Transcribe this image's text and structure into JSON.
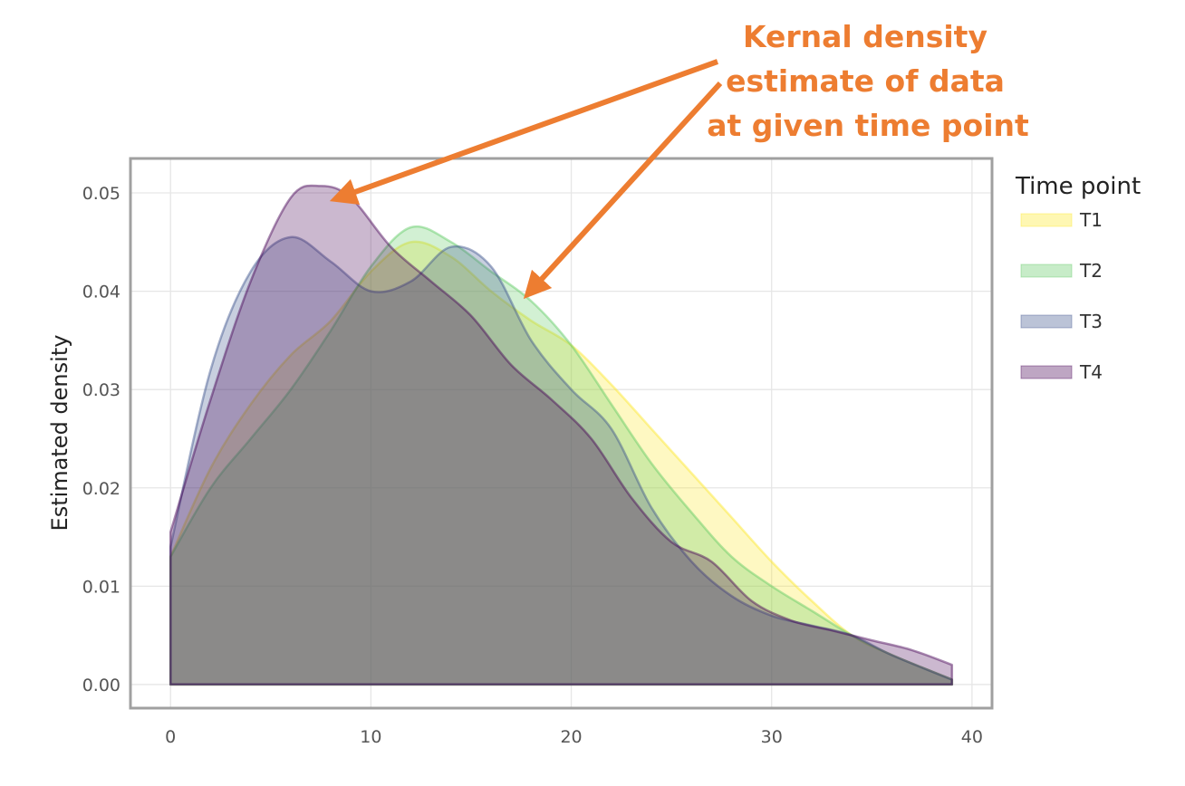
{
  "chart_data": {
    "type": "area",
    "title": "",
    "xlabel": "",
    "ylabel": "Estimated density",
    "xlim": [
      -2,
      41
    ],
    "ylim": [
      -0.0024,
      0.0535
    ],
    "xticks": [
      "0",
      "10",
      "20",
      "30",
      "40"
    ],
    "yticks": [
      "0.00",
      "0.01",
      "0.02",
      "0.03",
      "0.04",
      "0.05"
    ],
    "grid": true,
    "legend": {
      "title": "Time point",
      "position": "right"
    },
    "annotation": {
      "lines": [
        "Kernal density",
        "estimate of data",
        "at given time point"
      ],
      "color": "#ED7D31"
    },
    "series": [
      {
        "name": "T1",
        "color": "#FDE725",
        "x": [
          0,
          2,
          4,
          6,
          8,
          10,
          12,
          14,
          16,
          18,
          20,
          22,
          24,
          26,
          28,
          30,
          32,
          34,
          36,
          39
        ],
        "y": [
          0.013,
          0.022,
          0.0285,
          0.0335,
          0.037,
          0.042,
          0.045,
          0.0435,
          0.04,
          0.037,
          0.0345,
          0.0305,
          0.026,
          0.0215,
          0.017,
          0.0125,
          0.0085,
          0.005,
          0.003,
          0.0005
        ]
      },
      {
        "name": "T2",
        "color": "#5EC962",
        "x": [
          0,
          2,
          4,
          6,
          8,
          10,
          12,
          14,
          16,
          18,
          20,
          22,
          24,
          26,
          28,
          30,
          32,
          34,
          36,
          39
        ],
        "y": [
          0.013,
          0.02,
          0.025,
          0.03,
          0.036,
          0.0425,
          0.0465,
          0.045,
          0.042,
          0.039,
          0.0345,
          0.0285,
          0.0225,
          0.0175,
          0.013,
          0.01,
          0.0075,
          0.005,
          0.003,
          0.0005
        ]
      },
      {
        "name": "T3",
        "color": "#3B528B",
        "x": [
          0,
          2,
          4,
          6,
          8,
          10,
          12,
          14,
          16,
          18,
          20,
          22,
          24,
          26,
          28,
          30,
          32,
          34,
          36,
          39
        ],
        "y": [
          0.014,
          0.032,
          0.042,
          0.0455,
          0.043,
          0.04,
          0.041,
          0.0445,
          0.0425,
          0.035,
          0.03,
          0.026,
          0.018,
          0.0125,
          0.009,
          0.007,
          0.006,
          0.005,
          0.003,
          0.0005
        ]
      },
      {
        "name": "T4",
        "color": "#440154",
        "x": [
          0,
          2,
          4,
          6,
          7.5,
          9,
          11,
          13,
          15,
          17,
          19,
          21,
          23,
          25,
          27,
          29,
          31,
          33,
          35,
          37,
          39
        ],
        "y": [
          0.0155,
          0.029,
          0.041,
          0.0495,
          0.0507,
          0.0495,
          0.0445,
          0.041,
          0.0375,
          0.0325,
          0.029,
          0.025,
          0.019,
          0.0145,
          0.0125,
          0.0085,
          0.0065,
          0.0055,
          0.0045,
          0.0035,
          0.002
        ]
      }
    ]
  }
}
